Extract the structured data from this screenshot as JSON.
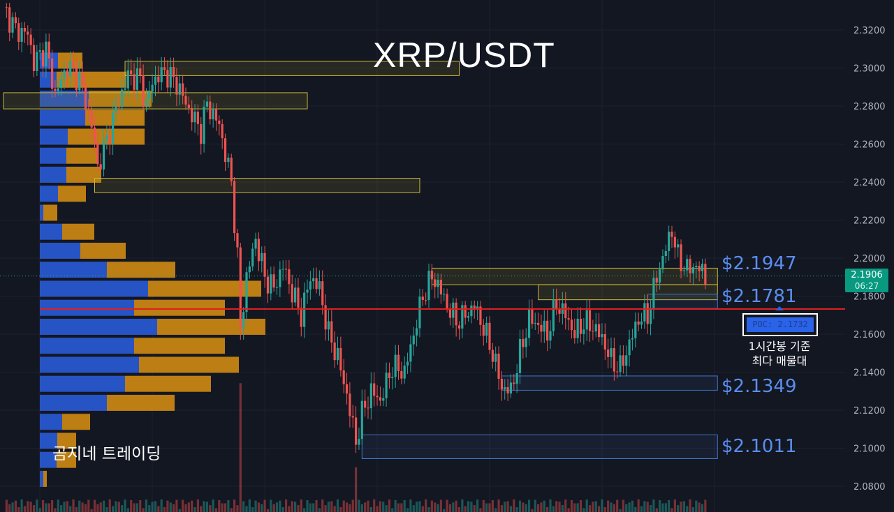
{
  "title": "XRP/USDT",
  "watermark": "곰지네 트레이딩",
  "colors": {
    "background": "#131722",
    "up": "#26a69a",
    "down": "#ef5350",
    "poc_line": "#e0201e",
    "label_blue": "#5b8ef0",
    "vp_buy": "#2a5bd7",
    "vp_sell": "#d08a12"
  },
  "price_tag": {
    "price": "2.1906",
    "countdown": "06:27"
  },
  "levels": [
    {
      "label": "$2.1947",
      "price": 2.1947
    },
    {
      "label": "$2.1781",
      "price": 2.1781
    },
    {
      "label": "$2.1349",
      "price": 2.1349
    },
    {
      "label": "$2.1011",
      "price": 2.1011
    }
  ],
  "poc": {
    "label": "POC: 2.1732",
    "price": 2.1732,
    "note_line1": "1시간봉 기준",
    "note_line2": "최다 매물대"
  },
  "chart_data": {
    "type": "candlestick",
    "symbol": "XRP/USDT",
    "ylim": [
      2.072,
      2.334
    ],
    "y_ticks": [
      "2.3200",
      "2.3000",
      "2.2800",
      "2.2600",
      "2.2400",
      "2.2200",
      "2.2000",
      "2.1800",
      "2.1600",
      "2.1400",
      "2.1200",
      "2.1000",
      "2.0800"
    ],
    "y_tick_values": [
      2.32,
      2.3,
      2.28,
      2.26,
      2.24,
      2.22,
      2.2,
      2.18,
      2.16,
      2.14,
      2.12,
      2.1,
      2.08
    ],
    "close_path": [
      [
        0,
        2.332
      ],
      [
        4,
        2.32
      ],
      [
        8,
        2.318
      ],
      [
        10,
        2.303
      ],
      [
        14,
        2.31
      ],
      [
        17,
        2.286
      ],
      [
        21,
        2.301
      ],
      [
        25,
        2.294
      ],
      [
        29,
        2.27
      ],
      [
        31,
        2.248
      ],
      [
        34,
        2.262
      ],
      [
        37,
        2.278
      ],
      [
        41,
        2.296
      ],
      [
        45,
        2.294
      ],
      [
        47,
        2.28
      ],
      [
        49,
        2.293
      ],
      [
        53,
        2.298
      ],
      [
        57,
        2.292
      ],
      [
        61,
        2.278
      ],
      [
        65,
        2.267
      ],
      [
        67,
        2.281
      ],
      [
        71,
        2.27
      ],
      [
        75,
        2.24
      ],
      [
        77,
        2.2
      ],
      [
        78,
        2.162
      ],
      [
        80,
        2.19
      ],
      [
        83,
        2.21
      ],
      [
        86,
        2.19
      ],
      [
        89,
        2.184
      ],
      [
        92,
        2.196
      ],
      [
        95,
        2.182
      ],
      [
        98,
        2.17
      ],
      [
        101,
        2.19
      ],
      [
        104,
        2.184
      ],
      [
        107,
        2.16
      ],
      [
        110,
        2.148
      ],
      [
        113,
        2.128
      ],
      [
        116,
        2.103
      ],
      [
        118,
        2.118
      ],
      [
        121,
        2.13
      ],
      [
        124,
        2.125
      ],
      [
        128,
        2.143
      ],
      [
        132,
        2.14
      ],
      [
        135,
        2.16
      ],
      [
        138,
        2.18
      ],
      [
        141,
        2.19
      ],
      [
        143,
        2.186
      ],
      [
        146,
        2.175
      ],
      [
        149,
        2.167
      ],
      [
        152,
        2.17
      ],
      [
        155,
        2.175
      ],
      [
        158,
        2.163
      ],
      [
        161,
        2.15
      ],
      [
        164,
        2.132
      ],
      [
        167,
        2.13
      ],
      [
        170,
        2.15
      ],
      [
        173,
        2.168
      ],
      [
        176,
        2.165
      ],
      [
        179,
        2.16
      ],
      [
        182,
        2.176
      ],
      [
        185,
        2.17
      ],
      [
        188,
        2.16
      ],
      [
        191,
        2.166
      ],
      [
        194,
        2.164
      ],
      [
        197,
        2.158
      ],
      [
        200,
        2.146
      ],
      [
        203,
        2.142
      ],
      [
        206,
        2.155
      ],
      [
        209,
        2.168
      ],
      [
        212,
        2.17
      ],
      [
        215,
        2.19
      ],
      [
        218,
        2.205
      ],
      [
        220,
        2.215
      ],
      [
        222,
        2.2
      ],
      [
        225,
        2.194
      ],
      [
        228,
        2.196
      ],
      [
        231,
        2.1906
      ]
    ],
    "volume_profile": [
      {
        "price": 2.3035,
        "buy": 26,
        "sell": 35
      },
      {
        "price": 2.2935,
        "buy": 24,
        "sell": 100
      },
      {
        "price": 2.2835,
        "buy": 70,
        "sell": 90
      },
      {
        "price": 2.2735,
        "buy": 65,
        "sell": 85
      },
      {
        "price": 2.2635,
        "buy": 40,
        "sell": 110
      },
      {
        "price": 2.2535,
        "buy": 38,
        "sell": 45
      },
      {
        "price": 2.2435,
        "buy": 38,
        "sell": 50
      },
      {
        "price": 2.2335,
        "buy": 26,
        "sell": 40
      },
      {
        "price": 2.2235,
        "buy": 5,
        "sell": 20
      },
      {
        "price": 2.2135,
        "buy": 32,
        "sell": 46
      },
      {
        "price": 2.2035,
        "buy": 58,
        "sell": 65
      },
      {
        "price": 2.1935,
        "buy": 96,
        "sell": 98
      },
      {
        "price": 2.1835,
        "buy": 155,
        "sell": 162
      },
      {
        "price": 2.1735,
        "buy": 135,
        "sell": 130
      },
      {
        "price": 2.1635,
        "buy": 168,
        "sell": 155
      },
      {
        "price": 2.1535,
        "buy": 135,
        "sell": 130
      },
      {
        "price": 2.1435,
        "buy": 142,
        "sell": 143
      },
      {
        "price": 2.1335,
        "buy": 122,
        "sell": 123
      },
      {
        "price": 2.1235,
        "buy": 96,
        "sell": 97
      },
      {
        "price": 2.1135,
        "buy": 32,
        "sell": 40
      },
      {
        "price": 2.1035,
        "buy": 25,
        "sell": 27
      },
      {
        "price": 2.0935,
        "buy": 24,
        "sell": 28
      },
      {
        "price": 2.0835,
        "buy": 5,
        "sell": 5
      }
    ],
    "zones": [
      {
        "top": 2.3035,
        "bottom": 2.296,
        "start": 40,
        "end": 150,
        "type": "supply"
      },
      {
        "top": 2.287,
        "bottom": 2.2785,
        "start": 0,
        "end": 100,
        "type": "supply"
      },
      {
        "top": 2.242,
        "bottom": 2.2345,
        "start": 30,
        "end": 137,
        "type": "supply"
      },
      {
        "top": 2.1947,
        "bottom": 2.186,
        "start": 141,
        "end": 235,
        "type": "supply"
      },
      {
        "top": 2.186,
        "bottom": 2.1781,
        "start": 176,
        "end": 235,
        "type": "supply"
      },
      {
        "top": 2.181,
        "bottom": 2.1735,
        "start": 212,
        "end": 235,
        "type": "demand"
      },
      {
        "top": 2.138,
        "bottom": 2.1305,
        "start": 164,
        "end": 235,
        "type": "demand"
      },
      {
        "top": 2.107,
        "bottom": 2.0945,
        "start": 118,
        "end": 235,
        "type": "demand"
      }
    ]
  }
}
